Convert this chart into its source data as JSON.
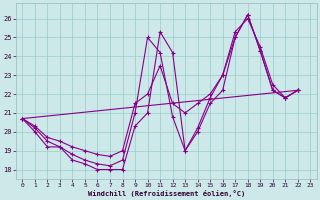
{
  "xlabel": "Windchill (Refroidissement éolien,°C)",
  "background_color": "#cce8e8",
  "line_color": "#880088",
  "grid_color": "#99cccc",
  "xlim": [
    -0.5,
    23.5
  ],
  "ylim": [
    17.5,
    26.8
  ],
  "yticks": [
    18,
    19,
    20,
    21,
    22,
    23,
    24,
    25,
    26
  ],
  "xticks": [
    0,
    1,
    2,
    3,
    4,
    5,
    6,
    7,
    8,
    9,
    10,
    11,
    12,
    13,
    14,
    15,
    16,
    17,
    18,
    19,
    20,
    21,
    22,
    23
  ],
  "line1_x": [
    0,
    1,
    2,
    3,
    4,
    5,
    6,
    7,
    8,
    9,
    10,
    11,
    12,
    13,
    14,
    15,
    16,
    17,
    18,
    19,
    20,
    21,
    22
  ],
  "line1_y": [
    20.7,
    20.0,
    19.2,
    19.2,
    18.5,
    18.3,
    18.0,
    18.0,
    18.0,
    20.3,
    21.0,
    25.3,
    24.2,
    19.0,
    20.0,
    21.5,
    22.2,
    25.0,
    26.2,
    24.3,
    22.2,
    21.8,
    22.2
  ],
  "line2_x": [
    0,
    1,
    2,
    3,
    4,
    5,
    6,
    7,
    8,
    9,
    10,
    11,
    12,
    13,
    14,
    15,
    16,
    17,
    18,
    19,
    20,
    21,
    22
  ],
  "line2_y": [
    20.7,
    20.2,
    19.5,
    19.2,
    18.8,
    18.5,
    18.3,
    18.2,
    18.5,
    21.0,
    25.0,
    24.2,
    20.8,
    19.0,
    20.2,
    21.8,
    23.0,
    25.0,
    26.2,
    24.3,
    22.2,
    21.8,
    22.2
  ],
  "line3_x": [
    0,
    1,
    2,
    3,
    4,
    5,
    6,
    7,
    8,
    9,
    10,
    11,
    12,
    13,
    14,
    15,
    16,
    17,
    18,
    19,
    20,
    21,
    22
  ],
  "line3_y": [
    20.7,
    20.3,
    19.7,
    19.5,
    19.2,
    19.0,
    18.8,
    18.7,
    19.0,
    21.5,
    22.0,
    23.5,
    21.5,
    21.0,
    21.5,
    22.0,
    23.0,
    25.3,
    26.0,
    24.5,
    22.5,
    21.8,
    22.2
  ],
  "line4_x": [
    0,
    22
  ],
  "line4_y": [
    20.7,
    22.2
  ]
}
